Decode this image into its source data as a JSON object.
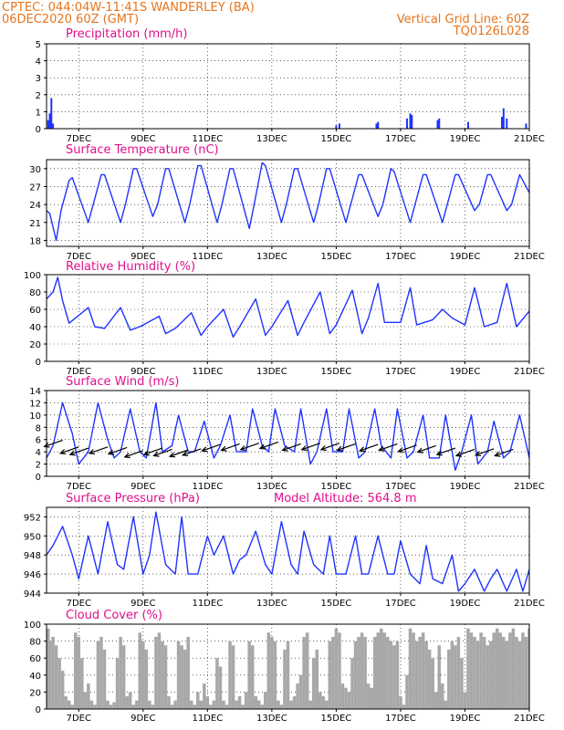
{
  "header": {
    "source_location": "CPTEC:   044:04W-11:41S   WANDERLEY (BA)",
    "run_time": "06DEC2020 60Z (GMT)",
    "grid_note": "Vertical Grid Line: 60Z",
    "code": "TQ0126L028"
  },
  "x_ticks": [
    "7DEC",
    "9DEC",
    "11DEC",
    "13DEC",
    "15DEC",
    "17DEC",
    "19DEC",
    "21DEC"
  ],
  "x_tick_days": [
    7,
    9,
    11,
    13,
    15,
    17,
    19,
    21
  ],
  "chart_data": [
    {
      "type": "bar",
      "title": "Precipitation (mm/h)",
      "ylim": [
        0,
        5
      ],
      "yticks": [
        0,
        1,
        2,
        3,
        4,
        5
      ],
      "color": "#1f33ff",
      "points": [
        [
          6.05,
          0.5
        ],
        [
          6.1,
          0.9
        ],
        [
          6.15,
          1.8
        ],
        [
          6.2,
          0.3
        ],
        [
          15.0,
          0.2
        ],
        [
          15.1,
          0.3
        ],
        [
          16.25,
          0.3
        ],
        [
          16.3,
          0.4
        ],
        [
          17.2,
          0.6
        ],
        [
          17.3,
          0.9
        ],
        [
          17.35,
          0.8
        ],
        [
          18.15,
          0.5
        ],
        [
          18.2,
          0.6
        ],
        [
          19.1,
          0.4
        ],
        [
          20.15,
          0.7
        ],
        [
          20.2,
          1.2
        ],
        [
          20.3,
          0.6
        ],
        [
          20.9,
          0.3
        ]
      ]
    },
    {
      "type": "line",
      "title": "Surface Temperature (nC)",
      "ylim": [
        17,
        31.5
      ],
      "yticks": [
        18,
        21,
        24,
        27,
        30
      ],
      "color": "#1f33ff",
      "series": [
        {
          "x": [
            6,
            6.1,
            6.3,
            6.45,
            6.7,
            6.8,
            7.3,
            7.45,
            7.7,
            7.8,
            8.3,
            8.45,
            8.7,
            8.8,
            9.3,
            9.45,
            9.7,
            9.8,
            10.3,
            10.45,
            10.7,
            10.8,
            11.3,
            11.45,
            11.7,
            11.8,
            12.3,
            12.45,
            12.7,
            12.8,
            13.3,
            13.45,
            13.7,
            13.8,
            14.3,
            14.45,
            14.7,
            14.8,
            15.3,
            15.45,
            15.7,
            15.8,
            16.3,
            16.45,
            16.7,
            16.8,
            17.3,
            17.45,
            17.7,
            17.8,
            18.3,
            18.45,
            18.7,
            18.8,
            19.3,
            19.45,
            19.7,
            19.8,
            20.3,
            20.45,
            20.7,
            20.8,
            21
          ],
          "y": [
            23,
            22.5,
            18,
            23,
            28,
            28.5,
            21,
            24,
            29,
            29,
            21,
            24,
            30,
            30,
            22,
            24,
            30,
            30,
            21,
            24,
            30.5,
            30.5,
            21,
            24,
            30,
            30,
            20,
            24,
            31,
            30.5,
            21,
            24,
            30,
            30,
            21,
            24,
            30,
            30,
            21,
            24,
            29,
            29,
            22,
            24,
            30,
            29.5,
            21,
            24,
            29,
            29,
            21,
            24,
            29,
            29,
            23,
            24,
            29,
            29,
            23,
            24,
            29,
            28,
            26
          ]
        }
      ]
    },
    {
      "type": "line",
      "title": "Relative Humidity (%)",
      "ylim": [
        0,
        100
      ],
      "yticks": [
        0,
        20,
        40,
        60,
        80,
        100
      ],
      "color": "#1f33ff",
      "series": [
        {
          "x": [
            6,
            6.2,
            6.35,
            6.5,
            6.7,
            7.3,
            7.5,
            7.8,
            8.3,
            8.6,
            8.9,
            9.5,
            9.7,
            10.0,
            10.5,
            10.8,
            11.0,
            11.5,
            11.8,
            12.0,
            12.5,
            12.8,
            13.0,
            13.5,
            13.8,
            14.0,
            14.5,
            14.8,
            15.0,
            15.5,
            15.8,
            16.0,
            16.3,
            16.5,
            17.0,
            17.3,
            17.5,
            18.0,
            18.3,
            18.6,
            19.0,
            19.3,
            19.6,
            20.0,
            20.3,
            20.6,
            21
          ],
          "y": [
            72,
            80,
            97,
            70,
            44,
            62,
            40,
            38,
            62,
            36,
            40,
            52,
            32,
            38,
            56,
            30,
            40,
            60,
            28,
            40,
            72,
            30,
            40,
            70,
            30,
            45,
            80,
            32,
            42,
            82,
            32,
            50,
            90,
            45,
            45,
            85,
            42,
            48,
            60,
            50,
            42,
            85,
            40,
            45,
            90,
            40,
            58
          ]
        }
      ]
    },
    {
      "type": "line",
      "title": "Surface Wind (m/s)",
      "ylim": [
        0,
        14
      ],
      "yticks": [
        0,
        2,
        4,
        6,
        8,
        10,
        12,
        14
      ],
      "color": "#1f33ff",
      "series": [
        {
          "x": [
            6,
            6.2,
            6.5,
            6.8,
            7.0,
            7.3,
            7.6,
            7.9,
            8.1,
            8.3,
            8.6,
            8.9,
            9.1,
            9.4,
            9.6,
            9.9,
            10.1,
            10.4,
            10.6,
            10.9,
            11.2,
            11.4,
            11.7,
            11.9,
            12.2,
            12.4,
            12.7,
            12.9,
            13.1,
            13.4,
            13.7,
            13.9,
            14.2,
            14.4,
            14.7,
            14.9,
            15.2,
            15.4,
            15.7,
            15.9,
            16.2,
            16.4,
            16.7,
            16.9,
            17.2,
            17.4,
            17.7,
            17.9,
            18.2,
            18.4,
            18.7,
            18.9,
            19.2,
            19.4,
            19.7,
            19.9,
            20.2,
            20.4,
            20.7,
            21
          ],
          "y": [
            3,
            5,
            12,
            7,
            2,
            4,
            12,
            6,
            3,
            4,
            11,
            4,
            3,
            12,
            4,
            5,
            10,
            4,
            4,
            9,
            3,
            5,
            10,
            4,
            4,
            11,
            5,
            4,
            11,
            5,
            4,
            11,
            2,
            4,
            11,
            4,
            4,
            11,
            3,
            4,
            11,
            5,
            3,
            11,
            3,
            4,
            10,
            3,
            3,
            10,
            1,
            4,
            10,
            2,
            4,
            9,
            3,
            4,
            10,
            3
          ]
        }
      ],
      "arrows": [
        [
          6.5,
          5.9
        ],
        [
          7.0,
          4.8
        ],
        [
          7.3,
          4.6
        ],
        [
          7.9,
          4.8
        ],
        [
          8.5,
          4.7
        ],
        [
          9.0,
          4.2
        ],
        [
          9.6,
          4.6
        ],
        [
          9.9,
          4.4
        ],
        [
          10.4,
          4.3
        ],
        [
          10.8,
          4.5
        ],
        [
          11.4,
          5.2
        ],
        [
          12.0,
          5.3
        ],
        [
          12.6,
          5.4
        ],
        [
          13.2,
          5.6
        ],
        [
          13.9,
          5.3
        ],
        [
          14.5,
          5.4
        ],
        [
          15.1,
          5.4
        ],
        [
          15.6,
          5.3
        ],
        [
          16.3,
          5.2
        ],
        [
          16.9,
          5.3
        ],
        [
          17.5,
          5.1
        ],
        [
          18.1,
          5.0
        ],
        [
          18.7,
          4.6
        ],
        [
          19.3,
          4.4
        ],
        [
          19.9,
          4.5
        ],
        [
          20.5,
          4.4
        ]
      ]
    },
    {
      "type": "line",
      "title": "Surface Pressure (hPa)",
      "model_altitude": "Model Altitude: 564.8 m",
      "ylim": [
        944,
        953
      ],
      "yticks": [
        944,
        946,
        948,
        950,
        952
      ],
      "color": "#1f33ff",
      "series": [
        {
          "x": [
            6,
            6.2,
            6.5,
            6.8,
            7.0,
            7.3,
            7.6,
            7.9,
            8.2,
            8.4,
            8.7,
            9.0,
            9.2,
            9.4,
            9.7,
            10.0,
            10.2,
            10.4,
            10.7,
            11.0,
            11.2,
            11.5,
            11.8,
            12.0,
            12.2,
            12.5,
            12.8,
            13.0,
            13.3,
            13.6,
            13.8,
            14.0,
            14.3,
            14.6,
            14.8,
            15.0,
            15.3,
            15.6,
            15.8,
            16.0,
            16.3,
            16.6,
            16.8,
            17.0,
            17.3,
            17.6,
            17.8,
            18.0,
            18.3,
            18.6,
            18.8,
            19.0,
            19.3,
            19.6,
            19.8,
            20.0,
            20.3,
            20.6,
            20.8,
            21
          ],
          "y": [
            948,
            949,
            951,
            948,
            945.5,
            950,
            946,
            951.5,
            947,
            946.5,
            952,
            946,
            948,
            952.5,
            947,
            946,
            952,
            946,
            946,
            950,
            948,
            950,
            946,
            947.5,
            948,
            950.5,
            947,
            946,
            951.5,
            947,
            946,
            950.5,
            947,
            946,
            950,
            946,
            946,
            950,
            946,
            946,
            950,
            946,
            946,
            949.5,
            946,
            945,
            949,
            945.5,
            945,
            948,
            944.2,
            945,
            946.5,
            944.2,
            945.5,
            946.5,
            944.2,
            946.5,
            944.2,
            946.5
          ]
        }
      ]
    },
    {
      "type": "area",
      "title": "Cloud Cover (%)",
      "ylim": [
        0,
        100
      ],
      "yticks": [
        0,
        20,
        40,
        60,
        80,
        100
      ],
      "color": "#a8a8a8",
      "x": [
        6,
        6.1,
        6.2,
        6.3,
        6.4,
        6.5,
        6.6,
        6.7,
        6.8,
        6.9,
        7.0,
        7.1,
        7.2,
        7.3,
        7.4,
        7.5,
        7.6,
        7.7,
        7.8,
        7.9,
        8.0,
        8.1,
        8.2,
        8.3,
        8.4,
        8.5,
        8.6,
        8.7,
        8.8,
        8.9,
        9.0,
        9.1,
        9.2,
        9.3,
        9.4,
        9.5,
        9.6,
        9.7,
        9.8,
        9.9,
        10.0,
        10.1,
        10.2,
        10.3,
        10.4,
        10.5,
        10.6,
        10.7,
        10.8,
        10.9,
        11.0,
        11.1,
        11.2,
        11.3,
        11.4,
        11.5,
        11.6,
        11.7,
        11.8,
        11.9,
        12.0,
        12.1,
        12.2,
        12.3,
        12.4,
        12.5,
        12.6,
        12.7,
        12.8,
        12.9,
        13.0,
        13.1,
        13.2,
        13.3,
        13.4,
        13.5,
        13.6,
        13.7,
        13.8,
        13.9,
        14.0,
        14.1,
        14.2,
        14.3,
        14.4,
        14.5,
        14.6,
        14.7,
        14.8,
        14.9,
        15.0,
        15.1,
        15.2,
        15.3,
        15.4,
        15.5,
        15.6,
        15.7,
        15.8,
        15.9,
        16.0,
        16.1,
        16.2,
        16.3,
        16.4,
        16.5,
        16.6,
        16.7,
        16.8,
        16.9,
        17.0,
        17.1,
        17.2,
        17.3,
        17.4,
        17.5,
        17.6,
        17.7,
        17.8,
        17.9,
        18.0,
        18.1,
        18.2,
        18.3,
        18.4,
        18.5,
        18.6,
        18.7,
        18.8,
        18.9,
        19.0,
        19.1,
        19.2,
        19.3,
        19.4,
        19.5,
        19.6,
        19.7,
        19.8,
        19.9,
        20.0,
        20.1,
        20.2,
        20.3,
        20.4,
        20.5,
        20.6,
        20.7,
        20.8,
        20.9,
        21.0
      ],
      "values": [
        95,
        80,
        85,
        75,
        60,
        45,
        15,
        10,
        5,
        90,
        85,
        60,
        20,
        30,
        10,
        5,
        80,
        85,
        70,
        10,
        5,
        8,
        60,
        85,
        75,
        15,
        20,
        5,
        10,
        90,
        80,
        70,
        10,
        5,
        85,
        90,
        80,
        75,
        15,
        5,
        10,
        80,
        75,
        70,
        85,
        10,
        5,
        20,
        10,
        30,
        15,
        5,
        10,
        60,
        50,
        10,
        5,
        80,
        75,
        10,
        15,
        5,
        20,
        80,
        75,
        15,
        10,
        5,
        20,
        90,
        85,
        80,
        10,
        5,
        70,
        80,
        10,
        15,
        30,
        40,
        85,
        90,
        10,
        60,
        70,
        20,
        15,
        10,
        80,
        85,
        95,
        90,
        30,
        25,
        20,
        60,
        80,
        85,
        90,
        85,
        30,
        25,
        85,
        90,
        95,
        90,
        85,
        80,
        75,
        80,
        15,
        5,
        40,
        95,
        90,
        80,
        85,
        90,
        80,
        70,
        60,
        20,
        75,
        30,
        10,
        70,
        80,
        75,
        85,
        60,
        20,
        95,
        90,
        85,
        80,
        90,
        85,
        75,
        80,
        90,
        95,
        90,
        85,
        80,
        90,
        95,
        85,
        80,
        90,
        85,
        95
      ]
    }
  ]
}
